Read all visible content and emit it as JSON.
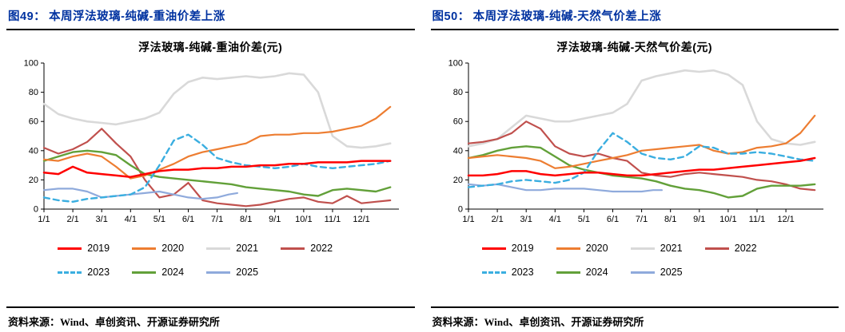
{
  "colors": {
    "caption_blue": "#0032A0",
    "axis": "#000000"
  },
  "figures": [
    {
      "caption_label": "图49：",
      "caption_title": "本周浮法玻璃-纯碱-重油价差上涨",
      "source_label": "资料来源：",
      "source_text": "Wind、卓创资讯、开源证券研究所"
    },
    {
      "caption_label": "图50：",
      "caption_title": "本周浮法玻璃-纯碱-天然气价差上涨",
      "source_label": "资料来源：",
      "source_text": "Wind、卓创资讯、开源证券研究所"
    }
  ],
  "chart_data": [
    {
      "type": "line",
      "title": "浮法玻璃-纯碱-重油价差(元)",
      "xlim": [
        1,
        13.3
      ],
      "ylim": [
        0,
        100
      ],
      "y_ticks": [
        0,
        20,
        40,
        60,
        80,
        100
      ],
      "x_ticks": [
        "1/1",
        "2/1",
        "3/1",
        "4/1",
        "5/1",
        "6/1",
        "7/1",
        "8/1",
        "9/1",
        "10/1",
        "11/1",
        "12/1"
      ],
      "x_tick_positions": [
        1,
        2,
        3,
        4,
        5,
        6,
        7,
        8,
        9,
        10,
        11,
        12
      ],
      "grid": false,
      "legend_position": "bottom",
      "draw_order": [
        2,
        3,
        5,
        6,
        1,
        4,
        0
      ],
      "series": [
        {
          "name": "2019",
          "color": "#FF0000",
          "width": 2.5,
          "x": [
            1,
            1.5,
            2,
            2.5,
            3,
            3.5,
            4,
            4.5,
            5,
            5.5,
            6,
            6.5,
            7,
            7.5,
            8,
            8.5,
            9,
            9.5,
            10,
            10.5,
            11,
            11.5,
            12,
            12.5,
            13
          ],
          "y": [
            25,
            24,
            29,
            25,
            24,
            23,
            22,
            24,
            26,
            27,
            27,
            28,
            28,
            29,
            29,
            30,
            30,
            31,
            31,
            32,
            32,
            32,
            33,
            33,
            33
          ]
        },
        {
          "name": "2020",
          "color": "#ED7D31",
          "width": 2.2,
          "x": [
            1,
            1.5,
            2,
            2.5,
            3,
            3.5,
            4,
            4.5,
            5,
            5.5,
            6,
            6.5,
            7,
            7.5,
            8,
            8.5,
            9,
            9.5,
            10,
            10.5,
            11,
            11.5,
            12,
            12.5,
            13
          ],
          "y": [
            34,
            33,
            36,
            38,
            36,
            29,
            21,
            23,
            27,
            31,
            36,
            39,
            41,
            43,
            45,
            50,
            51,
            51,
            52,
            52,
            53,
            55,
            57,
            62,
            70
          ]
        },
        {
          "name": "2021",
          "color": "#D9D9D9",
          "width": 2.6,
          "x": [
            1,
            1.5,
            2,
            2.5,
            3,
            3.5,
            4,
            4.5,
            5,
            5.5,
            6,
            6.5,
            7,
            7.5,
            8,
            8.5,
            9,
            9.5,
            10,
            10.5,
            11,
            11.5,
            12,
            12.5,
            13
          ],
          "y": [
            72,
            65,
            62,
            60,
            59,
            58,
            60,
            62,
            66,
            79,
            87,
            90,
            89,
            90,
            91,
            90,
            91,
            93,
            92,
            80,
            50,
            43,
            42,
            43,
            45
          ]
        },
        {
          "name": "2022",
          "color": "#C0504D",
          "width": 2.2,
          "x": [
            1,
            1.5,
            2,
            2.5,
            3,
            3.5,
            4,
            4.5,
            5,
            5.5,
            6,
            6.5,
            7,
            7.5,
            8,
            8.5,
            9,
            9.5,
            10,
            10.5,
            11,
            11.5,
            12,
            12.5,
            13
          ],
          "y": [
            42,
            38,
            41,
            46,
            55,
            45,
            36,
            20,
            8,
            10,
            18,
            6,
            4,
            3,
            2,
            3,
            5,
            7,
            8,
            5,
            4,
            9,
            4,
            5,
            6
          ]
        },
        {
          "name": "2023",
          "color": "#3AAEE0",
          "width": 2.4,
          "dash": "7 5",
          "x": [
            1,
            1.5,
            2,
            2.5,
            3,
            3.5,
            4,
            4.5,
            5,
            5.5,
            6,
            6.5,
            7,
            7.5,
            8,
            8.5,
            9,
            9.5,
            10,
            10.5,
            11,
            11.5,
            12,
            12.5,
            13
          ],
          "y": [
            8,
            6,
            5,
            7,
            8,
            9,
            10,
            15,
            30,
            47,
            51,
            44,
            35,
            32,
            30,
            29,
            28,
            29,
            31,
            29,
            28,
            29,
            30,
            31,
            33
          ]
        },
        {
          "name": "2024",
          "color": "#62A039",
          "width": 2.4,
          "x": [
            1,
            1.5,
            2,
            2.5,
            3,
            3.5,
            4,
            4.5,
            5,
            5.5,
            6,
            6.5,
            7,
            7.5,
            8,
            8.5,
            9,
            9.5,
            10,
            10.5,
            11,
            11.5,
            12,
            12.5,
            13
          ],
          "y": [
            33,
            36,
            39,
            40,
            39,
            37,
            30,
            24,
            22,
            21,
            20,
            19,
            18,
            17,
            15,
            14,
            13,
            12,
            10,
            9,
            13,
            14,
            13,
            12,
            15
          ]
        },
        {
          "name": "2025",
          "color": "#8FAADC",
          "width": 2.2,
          "x": [
            1,
            1.5,
            2,
            2.5,
            3,
            3.5,
            4,
            4.5,
            5,
            5.5,
            6,
            6.5,
            7,
            7.4,
            7.7
          ],
          "y": [
            13,
            14,
            14,
            12,
            8,
            9,
            10,
            11,
            12,
            10,
            8,
            7,
            8,
            10,
            11
          ]
        }
      ]
    },
    {
      "type": "line",
      "title": "浮法玻璃-纯碱-天然气价差(元)",
      "xlim": [
        1,
        13.3
      ],
      "ylim": [
        0,
        100
      ],
      "y_ticks": [
        0,
        20,
        40,
        60,
        80,
        100
      ],
      "x_ticks": [
        "1/1",
        "2/1",
        "3/1",
        "4/1",
        "5/1",
        "6/1",
        "7/1",
        "8/1",
        "9/1",
        "10/1",
        "11/1",
        "12/1"
      ],
      "x_tick_positions": [
        1,
        2,
        3,
        4,
        5,
        6,
        7,
        8,
        9,
        10,
        11,
        12
      ],
      "grid": false,
      "legend_position": "bottom",
      "draw_order": [
        2,
        3,
        5,
        6,
        1,
        4,
        0
      ],
      "series": [
        {
          "name": "2019",
          "color": "#FF0000",
          "width": 2.5,
          "x": [
            1,
            1.5,
            2,
            2.5,
            3,
            3.5,
            4,
            4.5,
            5,
            5.5,
            6,
            6.5,
            7,
            7.5,
            8,
            8.5,
            9,
            9.5,
            10,
            10.5,
            11,
            11.5,
            12,
            12.5,
            13
          ],
          "y": [
            23,
            23,
            24,
            26,
            26,
            24,
            23,
            24,
            25,
            25,
            24,
            23,
            23,
            24,
            25,
            26,
            27,
            27,
            28,
            29,
            30,
            31,
            32,
            33,
            35
          ]
        },
        {
          "name": "2020",
          "color": "#ED7D31",
          "width": 2.2,
          "x": [
            1,
            1.5,
            2,
            2.5,
            3,
            3.5,
            4,
            4.5,
            5,
            5.5,
            6,
            6.5,
            7,
            7.5,
            8,
            8.5,
            9,
            9.5,
            10,
            10.5,
            11,
            11.5,
            12,
            12.5,
            13
          ],
          "y": [
            35,
            36,
            37,
            36,
            35,
            33,
            28,
            29,
            31,
            33,
            35,
            37,
            40,
            41,
            42,
            43,
            44,
            40,
            38,
            39,
            42,
            43,
            45,
            52,
            64
          ]
        },
        {
          "name": "2021",
          "color": "#D9D9D9",
          "width": 2.6,
          "x": [
            1,
            1.5,
            2,
            2.5,
            3,
            3.5,
            4,
            4.5,
            5,
            5.5,
            6,
            6.5,
            7,
            7.5,
            8,
            8.5,
            9,
            9.5,
            10,
            10.5,
            11,
            11.5,
            12,
            12.5,
            13
          ],
          "y": [
            43,
            45,
            48,
            56,
            64,
            62,
            60,
            60,
            62,
            64,
            66,
            72,
            88,
            91,
            93,
            95,
            94,
            95,
            92,
            85,
            60,
            48,
            45,
            44,
            46
          ]
        },
        {
          "name": "2022",
          "color": "#C0504D",
          "width": 2.2,
          "x": [
            1,
            1.5,
            2,
            2.5,
            3,
            3.5,
            4,
            4.5,
            5,
            5.5,
            6,
            6.5,
            7,
            7.5,
            8,
            8.5,
            9,
            9.5,
            10,
            10.5,
            11,
            11.5,
            12,
            12.5,
            13
          ],
          "y": [
            45,
            46,
            48,
            52,
            60,
            55,
            43,
            38,
            36,
            38,
            35,
            33,
            25,
            23,
            22,
            24,
            25,
            24,
            23,
            22,
            20,
            19,
            17,
            14,
            13
          ]
        },
        {
          "name": "2023",
          "color": "#3AAEE0",
          "width": 2.4,
          "dash": "7 5",
          "x": [
            1,
            1.5,
            2,
            2.5,
            3,
            3.5,
            4,
            4.5,
            5,
            5.5,
            6,
            6.5,
            7,
            7.5,
            8,
            8.5,
            9,
            9.5,
            10,
            10.5,
            11,
            11.5,
            12,
            12.5,
            13
          ],
          "y": [
            15,
            16,
            17,
            19,
            20,
            19,
            18,
            20,
            25,
            40,
            52,
            46,
            38,
            35,
            34,
            36,
            43,
            42,
            38,
            38,
            39,
            38,
            36,
            34,
            33
          ]
        },
        {
          "name": "2024",
          "color": "#62A039",
          "width": 2.4,
          "x": [
            1,
            1.5,
            2,
            2.5,
            3,
            3.5,
            4,
            4.5,
            5,
            5.5,
            6,
            6.5,
            7,
            7.5,
            8,
            8.5,
            9,
            9.5,
            10,
            10.5,
            11,
            11.5,
            12,
            12.5,
            13
          ],
          "y": [
            35,
            37,
            40,
            42,
            43,
            42,
            36,
            30,
            27,
            25,
            23,
            22,
            21,
            19,
            16,
            14,
            13,
            11,
            8,
            9,
            14,
            16,
            16,
            16,
            17
          ]
        },
        {
          "name": "2025",
          "color": "#8FAADC",
          "width": 2.2,
          "x": [
            1,
            1.5,
            2,
            2.5,
            3,
            3.5,
            4,
            4.5,
            5,
            5.5,
            6,
            6.5,
            7,
            7.4,
            7.7
          ],
          "y": [
            17,
            16,
            17,
            15,
            13,
            13,
            14,
            14,
            14,
            13,
            12,
            12,
            12,
            13,
            13
          ]
        }
      ]
    }
  ]
}
